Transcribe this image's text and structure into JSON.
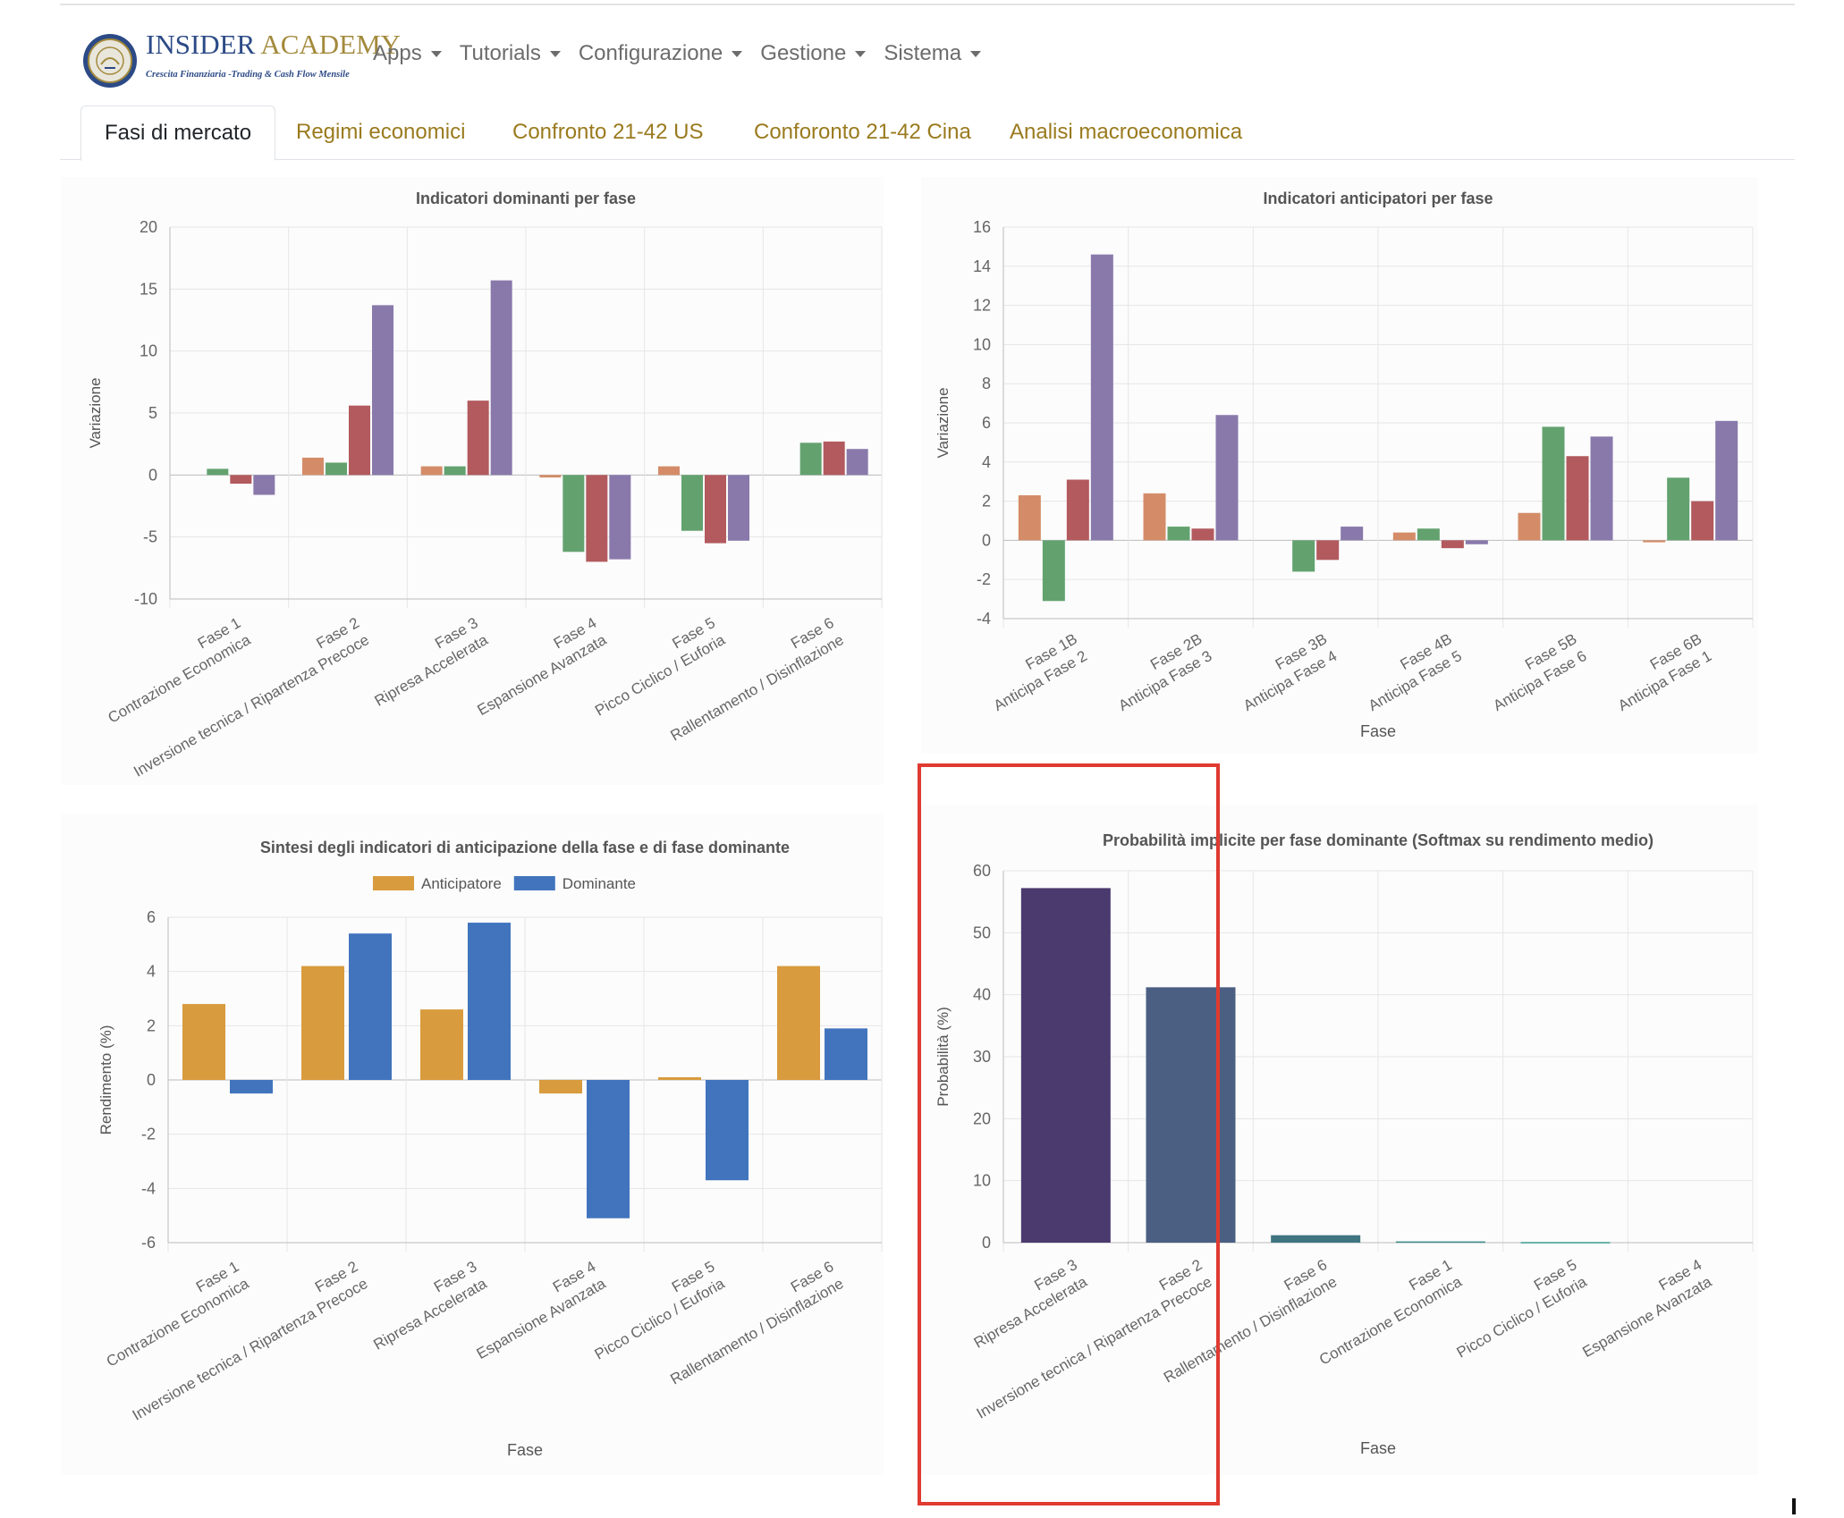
{
  "brand": {
    "name_part1": "INSIDER",
    "name_part2": "ACADEMY",
    "tagline": "Crescita Finanziaria -Trading & Cash Flow Mensile",
    "logo_icon": "academy-seal-icon"
  },
  "nav": {
    "items": [
      {
        "label": "Apps"
      },
      {
        "label": "Tutorials"
      },
      {
        "label": "Configurazione"
      },
      {
        "label": "Gestione"
      },
      {
        "label": "Sistema"
      }
    ]
  },
  "tabs": [
    {
      "label": "Fasi di mercato",
      "active": true
    },
    {
      "label": "Regimi economici"
    },
    {
      "label": "Confronto 21-42 US"
    },
    {
      "label": "Conforonto 21-42 Cina"
    },
    {
      "label": "Analisi macroeconomica"
    }
  ],
  "colors": {
    "orange": "#d48c68",
    "green": "#63a26f",
    "red": "#b25a5e",
    "purple": "#8979ab",
    "anticipatore": "#d89b3e",
    "dominante": "#4174bd",
    "prob_bars": [
      "#4a3a6e",
      "#4a5f82",
      "#3f7580",
      "#3c8a88",
      "#3d9a8e",
      "#45a591"
    ],
    "highlight": "#e03a31"
  },
  "chart_data": [
    {
      "type": "bar",
      "title": "Indicatori dominanti per fase",
      "ylabel": "Variazione",
      "xlabel": "",
      "ylim": [
        -10,
        20
      ],
      "yticks": [
        -10,
        -5,
        0,
        5,
        10,
        15,
        20
      ],
      "categories": [
        [
          "Fase 1",
          "Contrazione Economica"
        ],
        [
          "Fase 2",
          "Inversione tecnica / Ripartenza Precoce"
        ],
        [
          "Fase 3",
          "Ripresa Accelerata"
        ],
        [
          "Fase 4",
          "Espansione Avanzata"
        ],
        [
          "Fase 5",
          "Picco Ciclico / Euforia"
        ],
        [
          "Fase 6",
          "Rallentamento / Disinflazione"
        ]
      ],
      "series": [
        {
          "values": [
            0,
            1.4,
            0.7,
            -0.2,
            0.7,
            0
          ]
        },
        {
          "values": [
            0.5,
            1.0,
            0.7,
            -6.2,
            -4.5,
            2.6
          ]
        },
        {
          "values": [
            -0.7,
            5.6,
            6.0,
            -7.0,
            -5.5,
            2.7
          ]
        },
        {
          "values": [
            -1.6,
            13.7,
            15.7,
            -6.8,
            -5.3,
            2.1
          ]
        }
      ]
    },
    {
      "type": "bar",
      "title": "Indicatori anticipatori per fase",
      "ylabel": "Variazione",
      "xlabel": "Fase",
      "ylim": [
        -4,
        16
      ],
      "yticks": [
        -4,
        -2,
        0,
        2,
        4,
        6,
        8,
        10,
        12,
        14,
        16
      ],
      "categories": [
        [
          "Fase 1B",
          "Anticipa Fase 2"
        ],
        [
          "Fase 2B",
          "Anticipa Fase 3"
        ],
        [
          "Fase 3B",
          "Anticipa Fase 4"
        ],
        [
          "Fase 4B",
          "Anticipa Fase 5"
        ],
        [
          "Fase 5B",
          "Anticipa Fase 6"
        ],
        [
          "Fase 6B",
          "Anticipa Fase 1"
        ]
      ],
      "series": [
        {
          "values": [
            2.3,
            2.4,
            0,
            0.4,
            1.4,
            -0.1
          ]
        },
        {
          "values": [
            -3.1,
            0.7,
            -1.6,
            0.6,
            5.8,
            3.2
          ]
        },
        {
          "values": [
            3.1,
            0.6,
            -1.0,
            -0.4,
            4.3,
            2.0
          ]
        },
        {
          "values": [
            14.6,
            6.4,
            0.7,
            -0.2,
            5.3,
            6.1
          ]
        }
      ]
    },
    {
      "type": "bar",
      "title": "Sintesi degli indicatori di anticipazione della fase e di fase dominante",
      "ylabel": "Rendimento (%)",
      "xlabel": "Fase",
      "ylim": [
        -6,
        6
      ],
      "yticks": [
        -6,
        -4,
        -2,
        0,
        2,
        4,
        6
      ],
      "legend_position": "top",
      "categories": [
        [
          "Fase 1",
          "Contrazione Economica"
        ],
        [
          "Fase 2",
          "Inversione tecnica / Ripartenza Precoce"
        ],
        [
          "Fase 3",
          "Ripresa Accelerata"
        ],
        [
          "Fase 4",
          "Espansione Avanzata"
        ],
        [
          "Fase 5",
          "Picco Ciclico / Euforia"
        ],
        [
          "Fase 6",
          "Rallentamento / Disinflazione"
        ]
      ],
      "series": [
        {
          "name": "Anticipatore",
          "values": [
            2.8,
            4.2,
            2.6,
            -0.5,
            0.1,
            4.2
          ]
        },
        {
          "name": "Dominante",
          "values": [
            -0.5,
            5.4,
            5.8,
            -5.1,
            -3.7,
            1.9
          ]
        }
      ]
    },
    {
      "type": "bar",
      "title": "Probabilità implicite per fase dominante (Softmax su rendimento medio)",
      "ylabel": "Probabilità (%)",
      "xlabel": "Fase",
      "ylim": [
        0,
        60
      ],
      "yticks": [
        0,
        10,
        20,
        30,
        40,
        50,
        60
      ],
      "categories": [
        [
          "Fase 3",
          "Ripresa Accelerata"
        ],
        [
          "Fase 2",
          "Inversione tecnica / Ripartenza Precoce"
        ],
        [
          "Fase 6",
          "Rallentamento / Disinflazione"
        ],
        [
          "Fase 1",
          "Contrazione Economica"
        ],
        [
          "Fase 5",
          "Picco Ciclico / Euforia"
        ],
        [
          "Fase 4",
          "Espansione Avanzata"
        ]
      ],
      "series": [
        {
          "values": [
            57.2,
            41.2,
            1.2,
            0.2,
            0.1,
            0.0
          ]
        }
      ]
    }
  ]
}
